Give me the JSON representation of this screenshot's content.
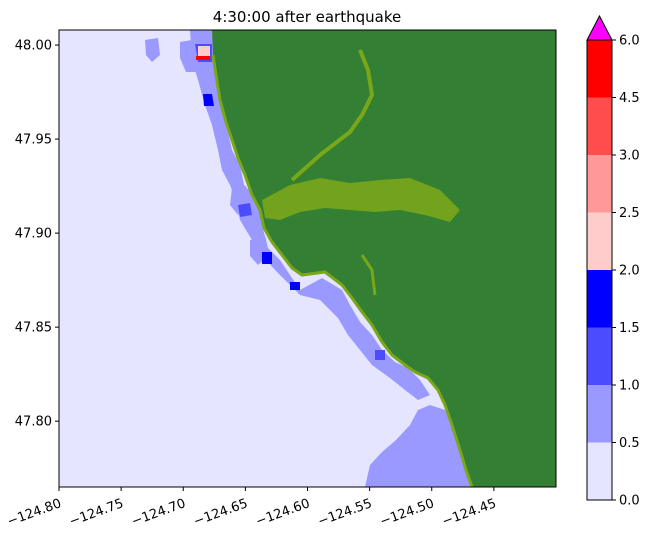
{
  "chart_data": {
    "type": "heatmap",
    "title": "4:30:00 after earthquake",
    "xlabel": "",
    "ylabel": "",
    "xlim": [
      -124.8,
      -124.4
    ],
    "ylim": [
      47.765,
      48.008
    ],
    "x_ticks": [
      -124.8,
      -124.75,
      -124.7,
      -124.65,
      -124.6,
      -124.55,
      -124.5,
      -124.45
    ],
    "x_tick_labels": [
      "−124.80",
      "−124.75",
      "−124.70",
      "−124.65",
      "−124.60",
      "−124.55",
      "−124.50",
      "−124.45"
    ],
    "y_ticks": [
      47.8,
      47.85,
      47.9,
      47.95,
      48.0
    ],
    "y_tick_labels": [
      "47.80",
      "47.85",
      "47.90",
      "47.95",
      "48.00"
    ],
    "grid": false,
    "land_color": "#337f33",
    "colorbar": {
      "levels": [
        0.0,
        0.5,
        1.0,
        1.5,
        2.0,
        2.5,
        3.0,
        4.5,
        6.0
      ],
      "tick_labels": [
        "0.0",
        "0.5",
        "1.0",
        "1.5",
        "2.0",
        "2.5",
        "3.0",
        "4.5",
        "6.0"
      ],
      "colors": [
        "#e5e5ff",
        "#9999ff",
        "#4c4cff",
        "#0000ff",
        "#ffcccc",
        "#ff9999",
        "#ff4c4c",
        "#ff0000"
      ],
      "extend_max_color": "#ff00ff",
      "extend": "max"
    }
  }
}
